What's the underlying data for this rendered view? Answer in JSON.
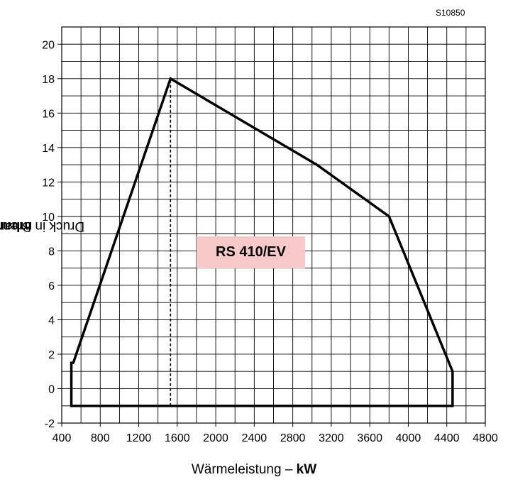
{
  "drawing_code": "S10850",
  "chart_data": {
    "type": "line",
    "model_label": "RS 410/EV",
    "xlabel_text": "Wärmeleistung – ",
    "xlabel_unit": "kW",
    "ylabel_text": "Druck in Brennkammer ",
    "ylabel_unit": "mbar",
    "xlim": [
      400,
      4800
    ],
    "ylim": [
      -2,
      21
    ],
    "xticks": [
      "400",
      "800",
      "1200",
      "1600",
      "2000",
      "2400",
      "2800",
      "3200",
      "3600",
      "4000",
      "4400",
      "4800"
    ],
    "yticks": [
      "-2",
      "0",
      "2",
      "4",
      "6",
      "8",
      "10",
      "12",
      "14",
      "16",
      "18",
      "20"
    ],
    "grid": true,
    "x": [
      500,
      500,
      520,
      1530,
      3050,
      3800,
      4460,
      4460
    ],
    "y": [
      -1,
      1.5,
      1.5,
      18,
      13,
      10,
      1,
      -1
    ],
    "closed": true,
    "marker_line": {
      "x": 1530,
      "y_from": -1,
      "y_to": 18,
      "style": "dashed"
    },
    "colors": {
      "line": "#000000",
      "grid": "#000000",
      "label_bg": "#f8c9c9"
    }
  }
}
